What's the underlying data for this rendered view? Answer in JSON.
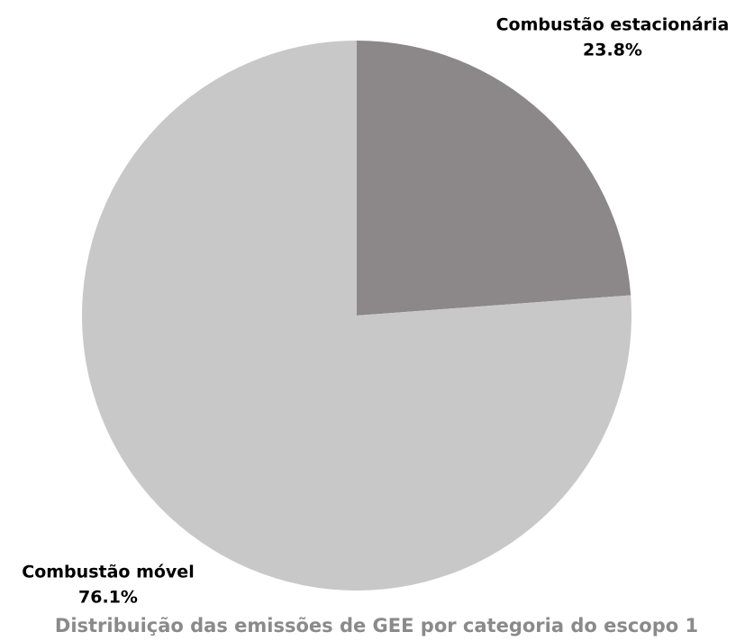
{
  "chart_data": {
    "type": "pie",
    "title": "Distribuição das emissões de GEE por categoria do escopo 1",
    "categories": [
      "Combustão estacionária",
      "Combustão móvel"
    ],
    "values": [
      23.8,
      76.1
    ],
    "value_labels": [
      "23.8%",
      "76.1%"
    ],
    "colors": [
      "#8c888a",
      "#c8c8c8"
    ]
  }
}
